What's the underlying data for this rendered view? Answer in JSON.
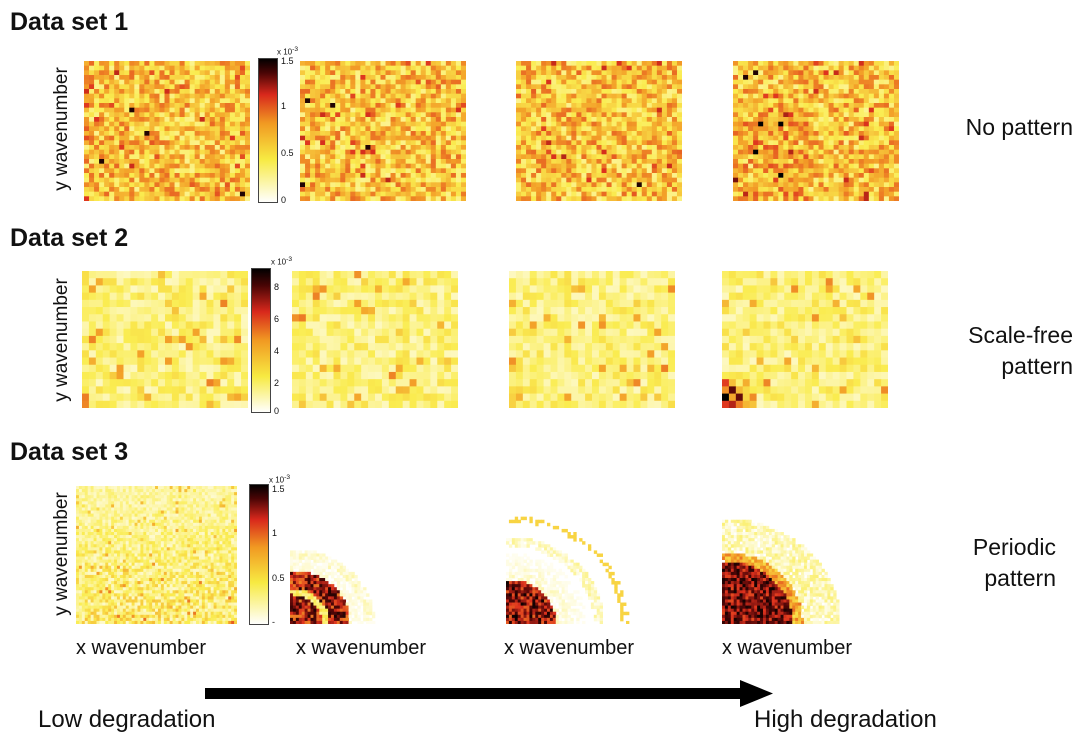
{
  "chart_data": [
    {
      "type": "heatmap",
      "title": "Data set 1",
      "ylabel": "y wavenumber",
      "pattern_label": "No pattern",
      "grid": [
        30,
        33
      ],
      "colormap": "hot (white-yellow-red-black)",
      "colorbar": {
        "exponent": "x 10",
        "exponent_power": "-3",
        "min": 0,
        "max": 1.5,
        "ticks": [
          "1.5",
          "1",
          "0.5",
          "0"
        ]
      },
      "panels": [
        "Low degradation",
        "",
        "",
        "High degradation"
      ]
    },
    {
      "type": "heatmap",
      "title": "Data set 2",
      "ylabel": "y wavenumber",
      "pattern_label_lines": [
        "Scale-free",
        "pattern"
      ],
      "grid": [
        19,
        24
      ],
      "colormap": "hot (white-yellow-red-black)",
      "colorbar": {
        "exponent": "x 10",
        "exponent_power": "-3",
        "min": 0,
        "max": 9,
        "ticks": [
          "8",
          "6",
          "4",
          "2",
          "0"
        ]
      },
      "panels": [
        "Low degradation",
        "",
        "",
        "High degradation"
      ]
    },
    {
      "type": "heatmap",
      "title": "Data set 3",
      "ylabel": "y wavenumber",
      "xlabel": "x wavenumber",
      "pattern_label_lines": [
        "Periodic",
        "pattern"
      ],
      "grid": [
        45,
        55
      ],
      "colormap": "hot (white-yellow-red-black)",
      "colorbar": {
        "exponent": "x 10",
        "exponent_power": "-3",
        "min": 0,
        "max": 1.5,
        "ticks": [
          "1.5",
          "1",
          "0.5",
          "-"
        ]
      },
      "panels": [
        "Low degradation",
        "",
        "",
        "High degradation"
      ]
    }
  ],
  "arrow": {
    "left_label": "Low degradation",
    "right_label": "High degradation"
  },
  "colors": {
    "white": "#ffffff",
    "yellow": "#f4e23a",
    "orange": "#f0a020",
    "red": "#e0301e",
    "dark": "#3b0606",
    "black": "#000000"
  }
}
